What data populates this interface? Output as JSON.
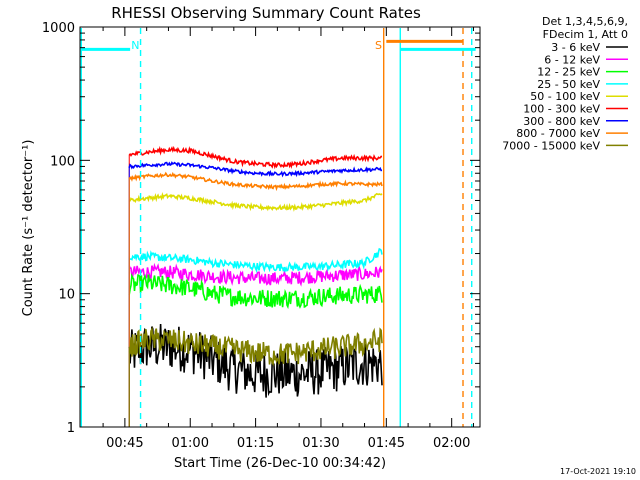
{
  "chart_data": {
    "type": "line",
    "title": "RHESSI Observing Summary Count Rates",
    "ylabel": "Count Rate (s⁻¹ detector⁻¹)",
    "xlabel": "Start Time (26-Dec-10 00:34:42)",
    "yscale": "log",
    "ylim": [
      1,
      1000
    ],
    "xlim_minutes_label": "00:34:42 to 02:06",
    "y_ticks": [
      "1",
      "10",
      "100",
      "1000"
    ],
    "x_ticks": [
      "00:45",
      "01:00",
      "01:15",
      "01:30",
      "01:45",
      "02:00"
    ],
    "x_tick_minutes": [
      45,
      60,
      75,
      90,
      105,
      120
    ],
    "x_range_minutes": [
      34.7,
      126.5
    ],
    "legend_header": [
      "Det 1,3,4,5,6,9,",
      "FDecim 1, Att 0"
    ],
    "legend_position": "right",
    "timestamp": "17-Oct-2021 19:10",
    "annotations": [
      {
        "text": "N",
        "color": "#00ffff",
        "x_minutes": 47.4
      },
      {
        "text": "S",
        "color": "#ff7f00",
        "x_minutes": 103.2
      }
    ],
    "event_lines": [
      {
        "color": "#00ffff",
        "style": "solid",
        "x_minutes": 35.0
      },
      {
        "color": "#00ffff",
        "style": "dashed",
        "x_minutes": 48.6
      },
      {
        "color": "#ff7f00",
        "style": "solid",
        "x_minutes": 104.4
      },
      {
        "color": "#00ffff",
        "style": "solid",
        "x_minutes": 108.2
      },
      {
        "color": "#ff7f00",
        "style": "dashed",
        "x_minutes": 122.6
      },
      {
        "color": "#00ffff",
        "style": "dashed",
        "x_minutes": 124.6
      }
    ],
    "flag_bars": [
      {
        "color": "#00ffff",
        "x_start": 35.0,
        "x_end": 46.2,
        "y": 680
      },
      {
        "color": "#ff7f00",
        "x_start": 105.0,
        "x_end": 122.6,
        "y": 780
      },
      {
        "color": "#00ffff",
        "x_start": 108.2,
        "x_end": 125.5,
        "y": 680
      }
    ],
    "series": [
      {
        "name": "3 - 6 keV",
        "color": "#000000",
        "x_start": 46.0,
        "x_end": 104.0,
        "x_knots": [
          46,
          50,
          55,
          60,
          65,
          70,
          75,
          80,
          85,
          90,
          95,
          100,
          104
        ],
        "y_knots": [
          3.5,
          4.0,
          4.0,
          3.8,
          3.2,
          2.7,
          2.5,
          2.5,
          2.5,
          2.6,
          2.8,
          3.0,
          3.0
        ],
        "noise": 0.18
      },
      {
        "name": "6 - 12 keV",
        "color": "#ff00ff",
        "x_start": 46.0,
        "x_end": 104.0,
        "x_knots": [
          46,
          50,
          55,
          60,
          65,
          70,
          75,
          80,
          85,
          90,
          95,
          100,
          104
        ],
        "y_knots": [
          14.5,
          14.5,
          14.5,
          14.0,
          13.5,
          13.2,
          13.0,
          13.0,
          13.2,
          13.5,
          13.8,
          14.0,
          14.5
        ],
        "noise": 0.05
      },
      {
        "name": "12 - 25 keV",
        "color": "#00ff00",
        "x_start": 46.0,
        "x_end": 104.0,
        "x_knots": [
          46,
          50,
          55,
          60,
          65,
          70,
          75,
          80,
          85,
          90,
          95,
          100,
          104
        ],
        "y_knots": [
          11.5,
          12.0,
          11.5,
          11.0,
          10.0,
          9.5,
          9.3,
          9.2,
          9.3,
          9.5,
          9.7,
          9.8,
          10.0
        ],
        "noise": 0.07
      },
      {
        "name": "25 - 50 keV",
        "color": "#00ffff",
        "x_start": 46.0,
        "x_end": 104.0,
        "x_knots": [
          46,
          50,
          55,
          60,
          65,
          70,
          75,
          80,
          85,
          90,
          95,
          100,
          104
        ],
        "y_knots": [
          19.0,
          19.0,
          18.5,
          18.0,
          17.0,
          16.5,
          16.0,
          15.8,
          15.8,
          16.0,
          16.5,
          17.0,
          21.0
        ],
        "noise": 0.03
      },
      {
        "name": "50 - 100 keV",
        "color": "#dddd00",
        "x_start": 46.0,
        "x_end": 104.0,
        "x_knots": [
          46,
          50,
          55,
          60,
          65,
          70,
          75,
          80,
          85,
          90,
          95,
          100,
          104
        ],
        "y_knots": [
          50,
          52,
          54,
          52,
          49,
          46,
          44.5,
          44,
          44.5,
          46,
          48,
          50,
          56
        ],
        "noise": 0.015
      },
      {
        "name": "100 - 300 keV",
        "color": "#ff0000",
        "x_start": 46.0,
        "x_end": 104.0,
        "x_knots": [
          46,
          50,
          55,
          60,
          65,
          70,
          75,
          80,
          85,
          90,
          95,
          100,
          104
        ],
        "y_knots": [
          110,
          115,
          120,
          118,
          108,
          98,
          94,
          92,
          94,
          100,
          104,
          104,
          104
        ],
        "noise": 0.015
      },
      {
        "name": "300 - 800 keV",
        "color": "#0000ff",
        "x_start": 46.0,
        "x_end": 104.0,
        "x_knots": [
          46,
          50,
          55,
          60,
          65,
          70,
          75,
          80,
          85,
          90,
          95,
          100,
          104
        ],
        "y_knots": [
          90,
          92,
          94,
          92,
          88,
          83,
          80,
          79,
          80,
          82,
          84,
          85,
          86
        ],
        "noise": 0.012
      },
      {
        "name": "800 - 7000 keV",
        "color": "#ff7f00",
        "x_start": 46.0,
        "x_end": 104.0,
        "x_knots": [
          46,
          50,
          55,
          60,
          65,
          70,
          75,
          80,
          85,
          90,
          95,
          100,
          104
        ],
        "y_knots": [
          73,
          76,
          78,
          75,
          70,
          66,
          64,
          63,
          64,
          66,
          67,
          66,
          66
        ],
        "noise": 0.012
      },
      {
        "name": "7000 - 15000 keV",
        "color": "#808000",
        "x_start": 46.0,
        "x_end": 104.0,
        "x_knots": [
          46,
          50,
          55,
          60,
          65,
          70,
          75,
          80,
          85,
          90,
          95,
          100,
          104
        ],
        "y_knots": [
          4.0,
          4.5,
          4.5,
          4.2,
          4.0,
          3.8,
          3.6,
          3.5,
          3.6,
          3.8,
          4.0,
          4.2,
          4.5
        ],
        "noise": 0.09
      }
    ]
  }
}
